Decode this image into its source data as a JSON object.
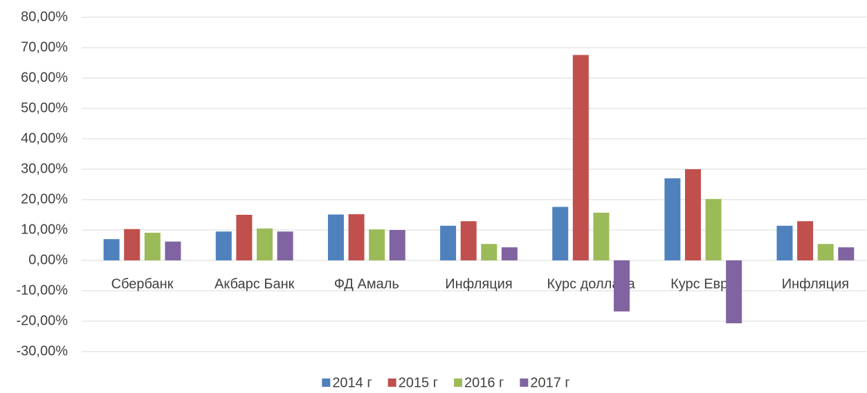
{
  "chart_data": {
    "type": "bar",
    "categories": [
      "Сбербанк",
      "Акбарс Банк",
      "ФД Амаль",
      "Инфляция",
      "Курс доллара",
      "Курс Евро",
      "Инфляция"
    ],
    "series": [
      {
        "name": "2014 г",
        "color": "#4f81bd",
        "values": [
          7.0,
          9.5,
          15.1,
          11.4,
          17.6,
          27.0,
          11.4
        ]
      },
      {
        "name": "2015 г",
        "color": "#c0504d",
        "values": [
          10.3,
          15.0,
          15.2,
          12.9,
          67.6,
          30.0,
          12.9
        ]
      },
      {
        "name": "2016 г",
        "color": "#9bbb59",
        "values": [
          9.1,
          10.5,
          10.2,
          5.4,
          15.7,
          20.2,
          5.4
        ]
      },
      {
        "name": "2017 г",
        "color": "#8064a2",
        "values": [
          6.2,
          9.5,
          10.0,
          4.3,
          -16.8,
          -20.7,
          4.3
        ]
      }
    ],
    "ylim": [
      -30,
      80
    ],
    "yticks": [
      {
        "value": -30,
        "label": "-30,00%"
      },
      {
        "value": -20,
        "label": "-20,00%"
      },
      {
        "value": -10,
        "label": "-10,00%"
      },
      {
        "value": 0,
        "label": "0,00%"
      },
      {
        "value": 10,
        "label": "10,00%"
      },
      {
        "value": 20,
        "label": "20,00%"
      },
      {
        "value": 30,
        "label": "30,00%"
      },
      {
        "value": 40,
        "label": "40,00%"
      },
      {
        "value": 50,
        "label": "50,00%"
      },
      {
        "value": 60,
        "label": "60,00%"
      },
      {
        "value": 70,
        "label": "70,00%"
      },
      {
        "value": 80,
        "label": "80,00%"
      }
    ],
    "grid": true,
    "legend": "bottom"
  }
}
